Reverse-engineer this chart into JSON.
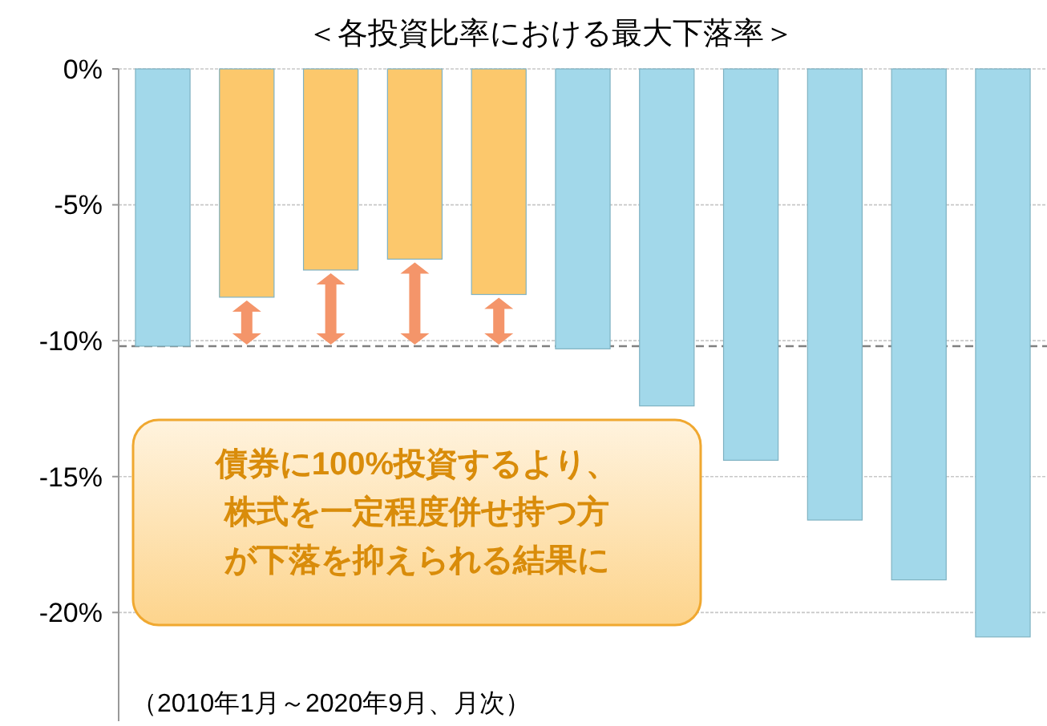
{
  "chart_data": {
    "type": "bar",
    "title": "＜各投資比率における最大下落率＞",
    "categories": [
      null,
      null,
      null,
      null,
      null,
      null,
      null,
      null,
      null,
      null,
      null
    ],
    "values": [
      -10.2,
      -8.4,
      -7.4,
      -7.0,
      -8.3,
      -10.3,
      -12.4,
      -14.4,
      -16.6,
      -18.8,
      -20.9
    ],
    "colors": [
      "#a2d8ea",
      "#fcc86c",
      "#fcc86c",
      "#fcc86c",
      "#fcc86c",
      "#a2d8ea",
      "#a2d8ea",
      "#a2d8ea",
      "#a2d8ea",
      "#a2d8ea",
      "#a2d8ea"
    ],
    "ylim": [
      -24,
      0
    ],
    "yticks": [
      {
        "value": 0,
        "label": "0%"
      },
      {
        "value": -5,
        "label": "-5%"
      },
      {
        "value": -10,
        "label": "-10%"
      },
      {
        "value": -15,
        "label": "-15%"
      },
      {
        "value": -20,
        "label": "-20%"
      }
    ],
    "grid": "y",
    "ref_lines": [
      {
        "axis": "y",
        "value": -10.2,
        "color": "#808080",
        "line_style": "dashed"
      }
    ],
    "annotations": [
      "債券に100%投資するより、株式を一定程度併せ持つ方が下落を抑えられる結果に",
      "（2010年1月～2020年9月、月次）"
    ]
  }
}
